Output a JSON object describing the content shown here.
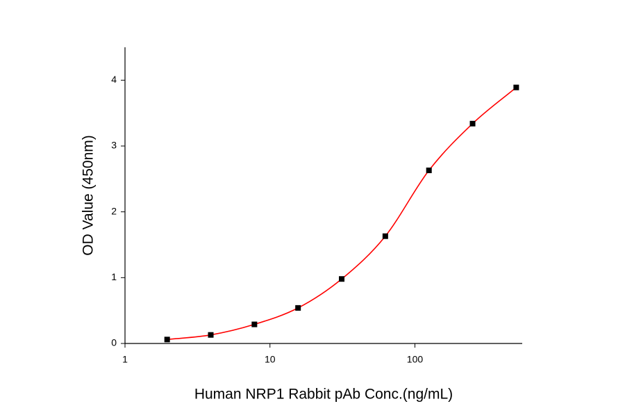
{
  "chart_data": {
    "type": "scatter",
    "x_label": "Human NRP1 Rabbit pAb Conc.(ng/mL)",
    "y_label": "OD Value (450nm)",
    "x": [
      1.953,
      3.906,
      7.8125,
      15.625,
      31.25,
      62.5,
      125,
      250,
      500
    ],
    "values": [
      0.06,
      0.13,
      0.29,
      0.54,
      0.98,
      1.63,
      2.63,
      3.34,
      3.89
    ],
    "color": "#000000",
    "line_color": "#ff0000",
    "xscale": "log",
    "xlim": [
      1,
      550
    ],
    "xticks": [
      1,
      10,
      100
    ],
    "ylim": [
      0,
      4.5
    ],
    "yticks": [
      0,
      1,
      2,
      3,
      4
    ],
    "grid": false
  }
}
